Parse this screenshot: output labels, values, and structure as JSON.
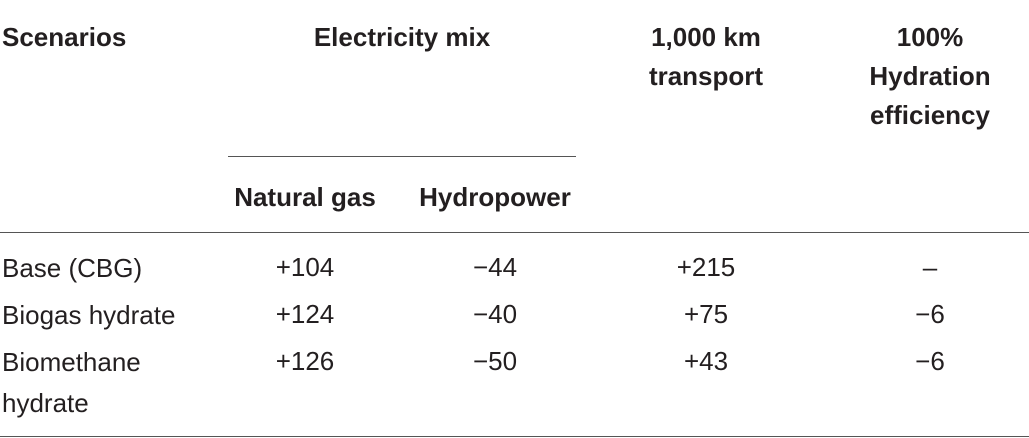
{
  "table": {
    "header": {
      "scenarios": "Scenarios",
      "electricity_mix": "Electricity mix",
      "natural_gas": "Natural gas",
      "hydropower": "Hydropower",
      "transport": "1,000 km transport",
      "hydration": "100% Hydration efficiency"
    },
    "rows": [
      [
        "Base (CBG)",
        "+104",
        "−44",
        "+215",
        "–"
      ],
      [
        "Biogas hydrate",
        "+124",
        "−40",
        "+75",
        "−6"
      ],
      [
        "Biomethane hydrate",
        "+126",
        "−50",
        "+43",
        "−6"
      ]
    ]
  }
}
